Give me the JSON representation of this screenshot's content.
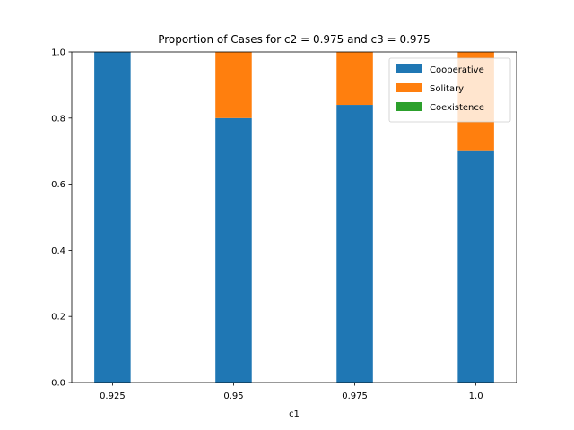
{
  "chart_data": {
    "type": "bar",
    "stacked": true,
    "title": "Proportion of Cases for c2 = 0.975 and c3 = 0.975",
    "xlabel": "c1",
    "ylabel": "",
    "categories": [
      "0.925",
      "0.95",
      "0.975",
      "1.0"
    ],
    "ylim": [
      0,
      1
    ],
    "yticks": [
      "0.0",
      "0.2",
      "0.4",
      "0.6",
      "0.8",
      "1.0"
    ],
    "grid": false,
    "legend_position": "top-right",
    "series": [
      {
        "name": "Cooperative",
        "color": "#1f77b4",
        "values": [
          1.0,
          0.8,
          0.84,
          0.7
        ]
      },
      {
        "name": "Solitary",
        "color": "#ff7f0e",
        "values": [
          0.0,
          0.2,
          0.16,
          0.3
        ]
      },
      {
        "name": "Coexistence",
        "color": "#2ca02c",
        "values": [
          0.0,
          0.0,
          0.0,
          0.0
        ]
      }
    ]
  }
}
